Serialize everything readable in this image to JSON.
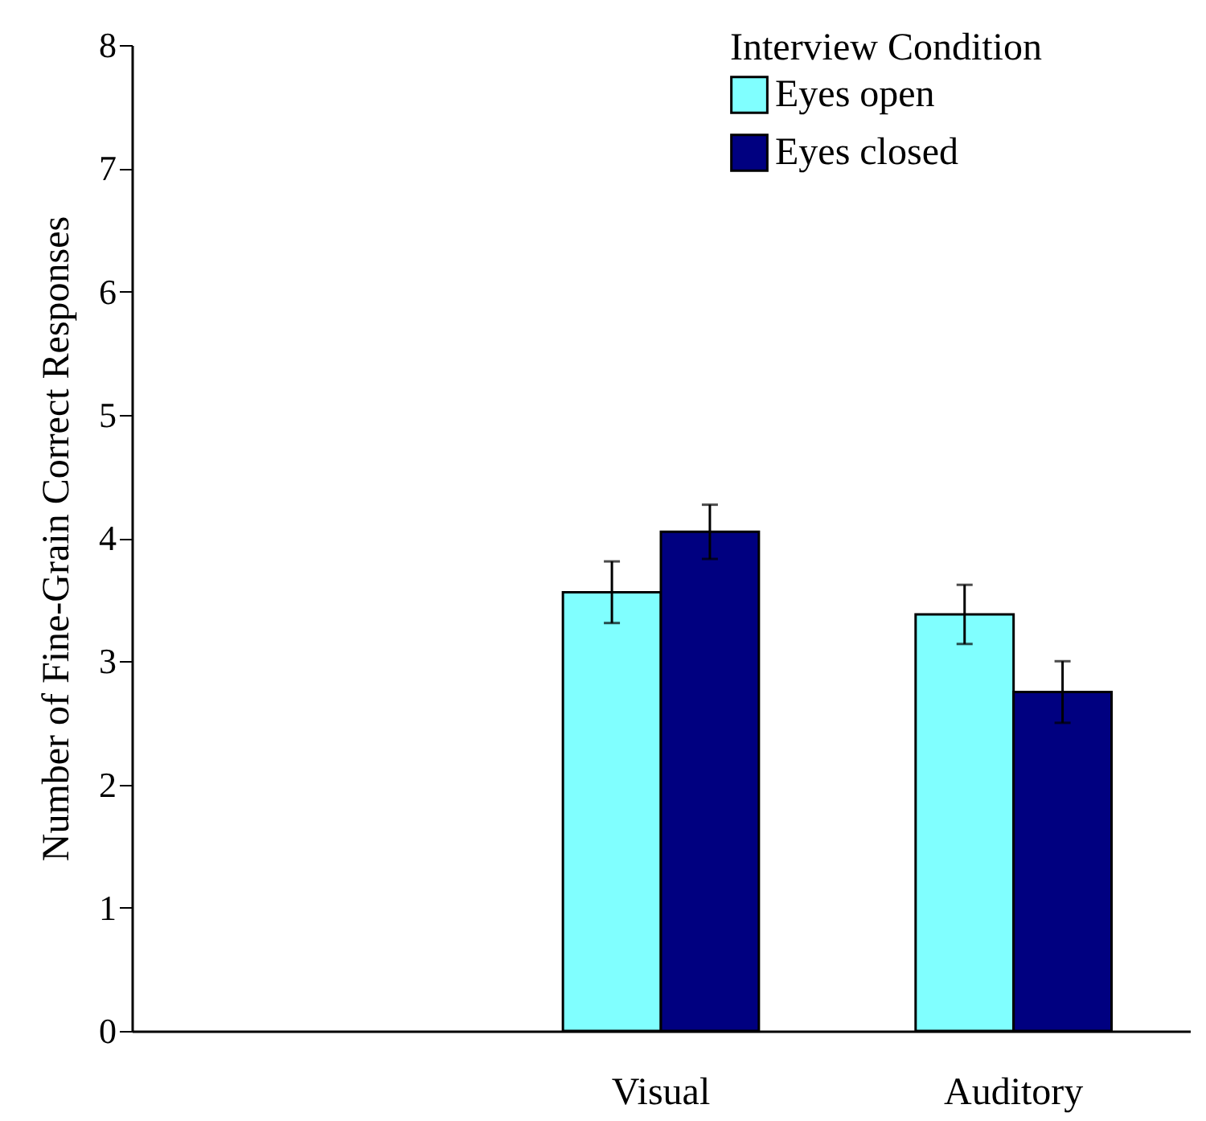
{
  "chart_data": {
    "type": "bar",
    "ylabel": "Number of Fine-Grain Correct Responses",
    "legend_title": "Interview Condition",
    "categories": [
      null,
      "Visual",
      "Auditory"
    ],
    "series": [
      {
        "name": "Eyes open",
        "color": "#80ffff",
        "values": [
          null,
          3.56,
          3.38
        ],
        "errors": [
          null,
          0.25,
          0.24
        ]
      },
      {
        "name": "Eyes closed",
        "color": "#000080",
        "values": [
          null,
          4.05,
          2.75
        ],
        "errors": [
          null,
          0.22,
          0.25
        ]
      }
    ],
    "ylim": [
      0,
      8
    ],
    "yticks": [
      0,
      1,
      2,
      3,
      4,
      5,
      6,
      7,
      8
    ],
    "grid": false,
    "legend": "top right"
  }
}
